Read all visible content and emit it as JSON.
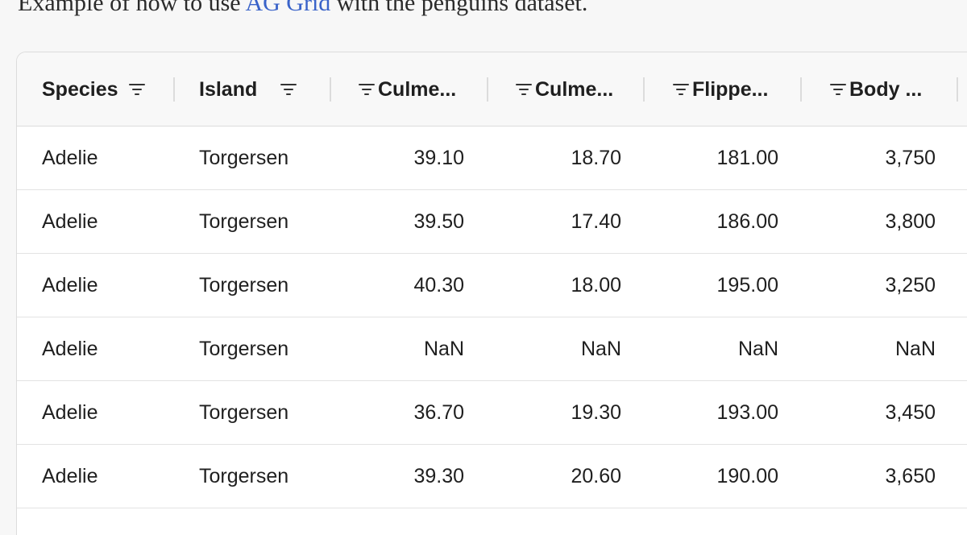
{
  "intro": {
    "prefix": "Example of how to use ",
    "link": "AG Grid",
    "suffix": " with the penguins dataset."
  },
  "columns": [
    {
      "label": "Species",
      "icon": "filter-icon"
    },
    {
      "label": "Island",
      "icon": "filter-icon"
    },
    {
      "label": "Culme...",
      "icon": "filter-icon"
    },
    {
      "label": "Culme...",
      "icon": "filter-icon"
    },
    {
      "label": "Flippe...",
      "icon": "filter-icon"
    },
    {
      "label": "Body ...",
      "icon": "filter-icon"
    }
  ],
  "rows": [
    [
      "Adelie",
      "Torgersen",
      "39.10",
      "18.70",
      "181.00",
      "3,750"
    ],
    [
      "Adelie",
      "Torgersen",
      "39.50",
      "17.40",
      "186.00",
      "3,800"
    ],
    [
      "Adelie",
      "Torgersen",
      "40.30",
      "18.00",
      "195.00",
      "3,250"
    ],
    [
      "Adelie",
      "Torgersen",
      "NaN",
      "NaN",
      "NaN",
      "NaN"
    ],
    [
      "Adelie",
      "Torgersen",
      "36.70",
      "19.30",
      "193.00",
      "3,450"
    ],
    [
      "Adelie",
      "Torgersen",
      "39.30",
      "20.60",
      "190.00",
      "3,650"
    ]
  ],
  "colors": {
    "link": "#3a63c9",
    "border": "#dcdcdc",
    "header_bg": "#f8f8f8"
  }
}
